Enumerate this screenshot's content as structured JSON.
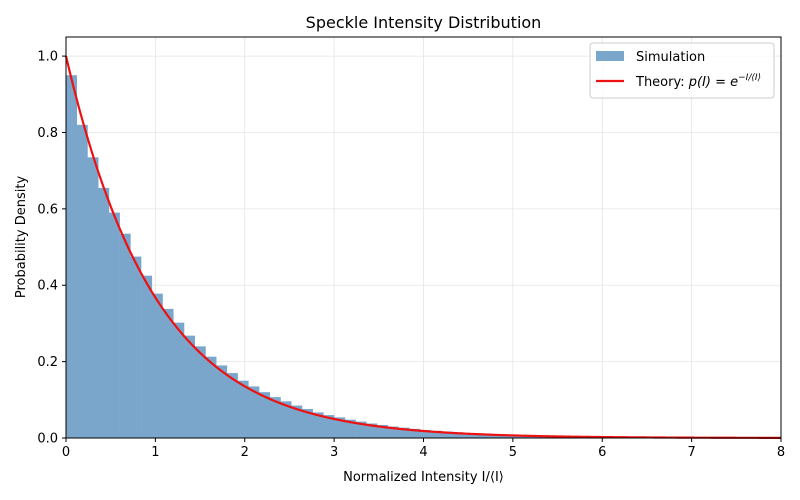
{
  "chart_data": {
    "type": "bar",
    "title": "Speckle Intensity Distribution",
    "xlabel": "Normalized Intensity I/⟨I⟩",
    "ylabel": "Probability Density",
    "xlim": [
      0,
      8
    ],
    "ylim": [
      0,
      1.05
    ],
    "xticks": [
      0,
      1,
      2,
      3,
      4,
      5,
      6,
      7,
      8
    ],
    "yticks": [
      0.0,
      0.2,
      0.4,
      0.6,
      0.8,
      1.0
    ],
    "xtick_labels": [
      "0",
      "1",
      "2",
      "3",
      "4",
      "5",
      "6",
      "7",
      "8"
    ],
    "ytick_labels": [
      "0.0",
      "0.2",
      "0.4",
      "0.6",
      "0.8",
      "1.0"
    ],
    "grid": true,
    "legend_position": "top-right",
    "colors": {
      "histogram": "#7ba6cc",
      "theory": "#ee1111",
      "grid": "#e5e5e5"
    },
    "series": [
      {
        "name": "Simulation",
        "kind": "histogram",
        "bin_width": 0.12,
        "bin_start": 0,
        "values": [
          0.95,
          0.82,
          0.735,
          0.655,
          0.59,
          0.535,
          0.475,
          0.425,
          0.378,
          0.338,
          0.302,
          0.268,
          0.24,
          0.213,
          0.19,
          0.17,
          0.15,
          0.135,
          0.12,
          0.107,
          0.096,
          0.085,
          0.076,
          0.067,
          0.06,
          0.054,
          0.048,
          0.043,
          0.038,
          0.034,
          0.03,
          0.027,
          0.024,
          0.021,
          0.019,
          0.017,
          0.015,
          0.013,
          0.012,
          0.011,
          0.0095,
          0.0085,
          0.0075,
          0.0067,
          0.006,
          0.0053,
          0.0047,
          0.0042,
          0.0037,
          0.0033,
          0.003,
          0.0026,
          0.0023,
          0.0021,
          0.0019,
          0.0017,
          0.0015,
          0.0013,
          0.0012,
          0.0011,
          0.001,
          0.0009,
          0.0008,
          0.0007,
          0.0006,
          0.0005,
          0.0005
        ]
      },
      {
        "name": "Theory: p(I) = e^(−I/⟨I⟩)",
        "kind": "line",
        "function": "exp(-x)",
        "x": [
          0,
          0.25,
          0.5,
          0.75,
          1,
          1.25,
          1.5,
          1.75,
          2,
          2.5,
          3,
          3.5,
          4,
          4.5,
          5,
          5.5,
          6,
          6.5,
          7,
          7.5,
          8
        ],
        "values": [
          1.0,
          0.779,
          0.607,
          0.472,
          0.368,
          0.287,
          0.223,
          0.174,
          0.135,
          0.082,
          0.05,
          0.03,
          0.018,
          0.011,
          0.0067,
          0.0041,
          0.0025,
          0.0015,
          0.0009,
          0.00055,
          0.00034
        ]
      }
    ],
    "legend": {
      "sim_label": "Simulation",
      "theory_prefix": "Theory: ",
      "theory_formula_main": "p(I) = e",
      "theory_formula_sup": "−I/⟨I⟩"
    }
  }
}
